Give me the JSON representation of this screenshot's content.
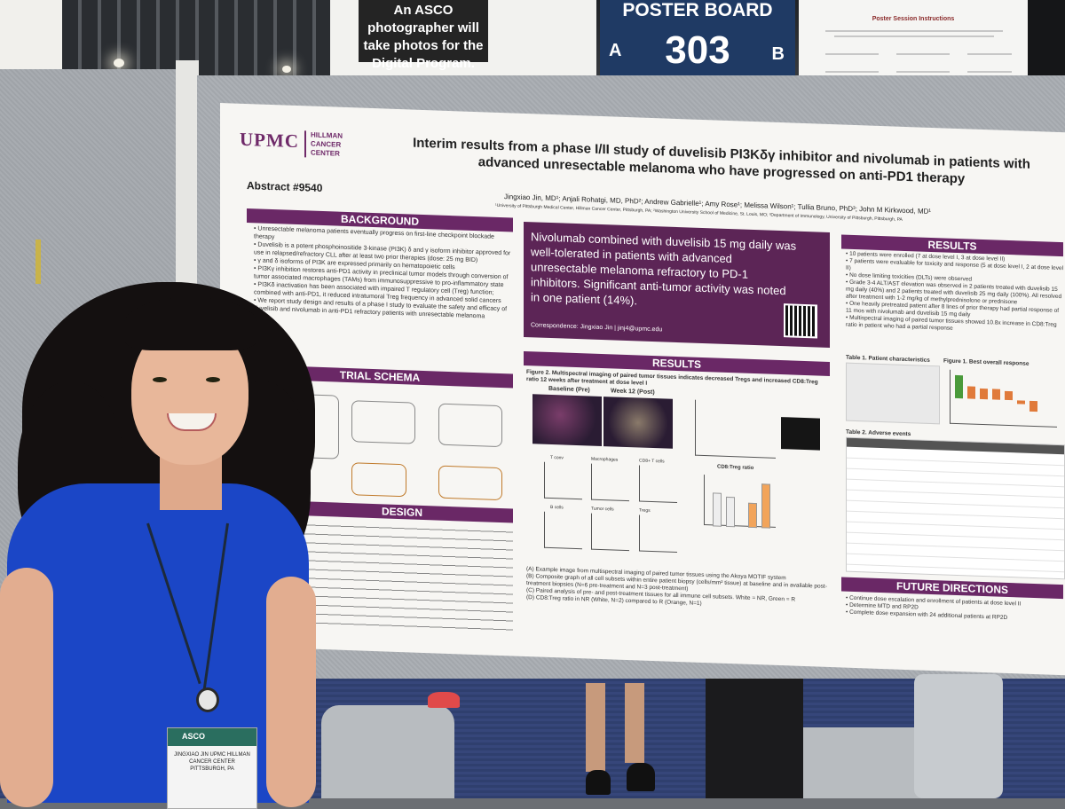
{
  "signs": {
    "photographer": "An ASCO photographer will take photos for the Digital Program.",
    "board_title": "POSTER BOARD",
    "board_number": "303",
    "board_left": "A",
    "board_right": "B",
    "instructions": "Poster Session Instructions"
  },
  "poster": {
    "logo": "UPMC",
    "logo_sub": "HILLMAN CANCER CENTER",
    "abstract": "Abstract #9540",
    "title": "Interim results from a phase I/II study of duvelisib PI3Kδγ inhibitor and nivolumab in patients with advanced unresectable melanoma who have progressed on anti-PD1 therapy",
    "authors": "Jingxiao Jin, MD¹; Anjali Rohatgi, MD, PhD²; Andrew Gabrielle¹; Amy Rose¹; Melissa Wilson¹; Tullia Bruno, PhD³; John M Kirkwood, MD¹",
    "affiliations": "¹University of Pittsburgh Medical Center, Hillman Cancer Center, Pittsburgh, PA; ²Washington University School of Medicine, St. Louis, MO; ³Department of Immunology, University of Pittsburgh, Pittsburgh, PA",
    "sections": {
      "background": "BACKGROUND",
      "trial_schema": "TRIAL SCHEMA",
      "design": "DESIGN",
      "results_main": "RESULTS",
      "results_right": "RESULTS",
      "future": "FUTURE DIRECTIONS"
    },
    "background_bullets": [
      "Unresectable melanoma patients eventually progress on first-line checkpoint blockade therapy",
      "Duvelisib is a potent phosphoinositide 3-kinase (PI3K) δ and γ isoform inhibitor approved for use in relapsed/refractory CLL after at least two prior therapies (dose: 25 mg BID)",
      "γ and δ isoforms of PI3K are expressed primarily on hematopoietic cells",
      "PI3Kγ inhibition restores anti-PD1 activity in preclinical tumor models through conversion of tumor associated macrophages (TAMs) from immunosuppressive to pro-inflammatory state",
      "PI3Kδ inactivation has been associated with impaired T regulatory cell (Treg) function; combined with anti-PD1, it reduced intratumoral Treg frequency in advanced solid cancers",
      "We report study design and results of a phase I study to evaluate the safety and efficacy of duvelisib and nivolumab in anti-PD1 refractory patients with unresectable melanoma"
    ],
    "highlight": "Nivolumab combined with duvelisib 15 mg daily was well-tolerated in patients with advanced unresectable melanoma refractory to PD-1 inhibitors. Significant anti-tumor activity was noted in one patient (14%).",
    "correspondence": "Correspondence: Jingxiao Jin | jinj4@upmc.edu",
    "fig2_title": "Figure 2. Multispectral imaging of paired tumor tissues indicates decreased Tregs and increased CD8:Treg ratio 12 weeks after treatment at dose level I",
    "fig2_baseline": "Baseline (Pre)",
    "fig2_week12": "Week 12 (Post)",
    "fig2_captions": [
      "(A) Example image from multispectral imaging of paired tumor tissues using the Akoya MOTIF system",
      "(B) Composite graph of all cell subsets within entire patient biopsy (cells/mm² tissue) at baseline and in available post-treatment biopsies (N=6 pre-treatment and N=3 post-treatment)",
      "(C) Paired analysis of pre- and post-treatment tissues for all immune cell subsets. White = NR, Green = R",
      "(D) CD8:Treg ratio in NR (White, N=2) compared to R (Orange, N=1)"
    ],
    "mini_plots": [
      "T conv",
      "Macrophages",
      "CD8+ T cells",
      "B cells",
      "Tumor cells",
      "Tregs"
    ],
    "cd8_treg": "CD8:Treg ratio",
    "results_bullets": [
      "10 patients were enrolled (7 at dose level I, 3 at dose level II)",
      "7 patients were evaluable for toxicity and response (5 at dose level I, 2 at dose level II)",
      "No dose limiting toxicities (DLTs) were observed",
      "Grade 3-4 ALT/AST elevation was observed in 2 patients treated with duvelisib 15 mg daily (40%) and 2 patients treated with duvelisib 25 mg daily (100%). All resolved after treatment with 1-2 mg/kg of methylprednisolone or prednisone",
      "One heavily pretreated patient after 8 lines of prior therapy had partial response of 11 mos with nivolumab and duvelisib 15 mg daily",
      "Multispectral imaging of paired tumor tissues showed 10.8x increase in CD8:Treg ratio in patient who had a partial response"
    ],
    "table1_title": "Table 1. Patient characteristics",
    "fig1_title": "Figure 1. Best overall response",
    "table2_title": "Table 2. Adverse events",
    "future_bullets": [
      "Continue dose escalation and enrollment of patients at dose level II",
      "Determine MTD and RP2D",
      "Complete dose expansion with 24 additional patients at RP2D"
    ]
  },
  "badge": {
    "logo": "ASCO",
    "name": "JINGXIAO JIN UPMC HILLMAN CANCER CENTER PITTSBURGH, PA"
  },
  "colors": {
    "poster_purple": "#6a2866",
    "board_blue": "#1f3a64",
    "dress_blue": "#1b46c6"
  }
}
